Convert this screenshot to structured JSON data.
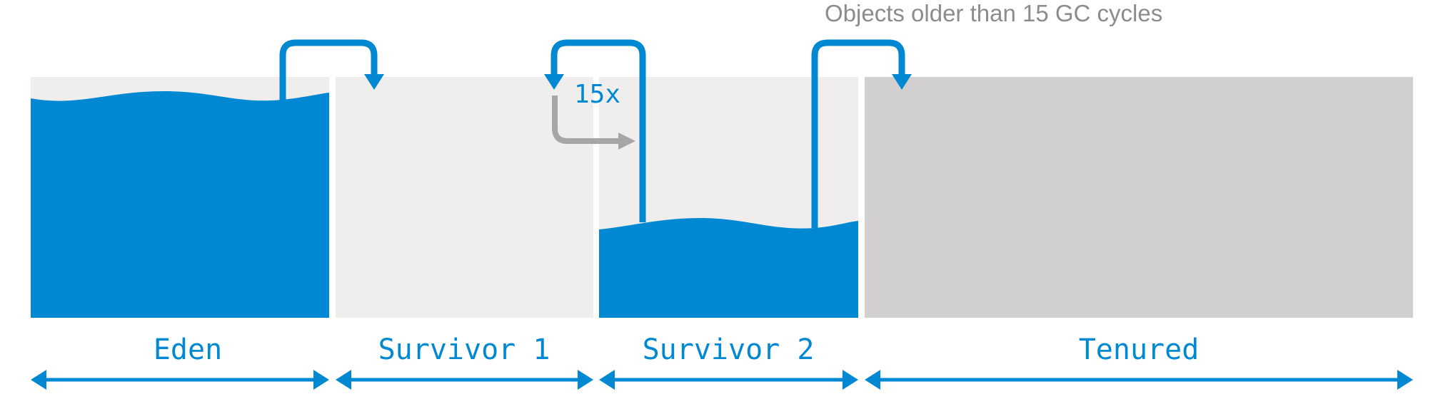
{
  "diagram": {
    "annotation": "Objects older than 15 GC cycles",
    "repeat_label": "15x",
    "regions": [
      {
        "id": "eden",
        "label": "Eden"
      },
      {
        "id": "survivor1",
        "label": "Survivor 1"
      },
      {
        "id": "survivor2",
        "label": "Survivor 2"
      },
      {
        "id": "tenured",
        "label": "Tenured"
      }
    ],
    "colors": {
      "accent": "#0089d2",
      "survivor_bg": "#efeeec",
      "tenured_bg": "#d1d0ce",
      "annotation_text": "#8c8c8c",
      "gray_arrow": "#a6a6a6"
    }
  }
}
